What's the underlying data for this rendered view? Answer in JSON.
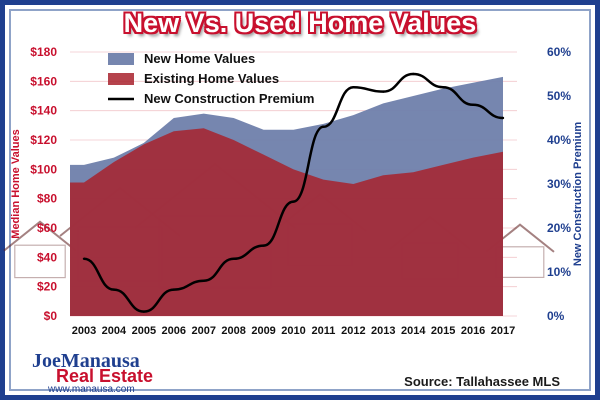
{
  "header": {
    "title": "New Vs. Used Home Values"
  },
  "footer": {
    "source": "Source: Tallahassee MLS"
  },
  "logo": {
    "line1": "JoeManausa",
    "line2": "Real Estate",
    "url": "www.manausa.com"
  },
  "colors": {
    "new_series": "#6f7fab",
    "existing_series": "#a8222d",
    "premium_line": "#000000",
    "left_axis_text": "#c8102e",
    "right_axis_text": "#1f3f8f",
    "title_outline": "#c8102e",
    "frame": "#1f3f8f"
  },
  "chart_data": {
    "type": "area",
    "title": "New Vs. Used Home Values",
    "x": [
      "2003",
      "2004",
      "2005",
      "2006",
      "2007",
      "2008",
      "2009",
      "2010",
      "2011",
      "2012",
      "2013",
      "2014",
      "2015",
      "2016",
      "2017"
    ],
    "ylabel": "Median Home Values",
    "ylabel_right": "New Construction Premium",
    "ylim": [
      0,
      180
    ],
    "ylim_right": [
      0,
      60
    ],
    "yticks": [
      "$0",
      "$20",
      "$40",
      "$60",
      "$80",
      "$100",
      "$120",
      "$140",
      "$160",
      "$180"
    ],
    "yticks_right": [
      "0%",
      "10%",
      "20%",
      "30%",
      "40%",
      "50%",
      "60%"
    ],
    "legend": "top-left",
    "grid": true,
    "series": [
      {
        "name": "New Home Values",
        "type": "area",
        "axis": "left",
        "values": [
          103,
          108,
          118,
          135,
          138,
          135,
          127,
          127,
          131,
          137,
          145,
          150,
          155,
          159,
          163
        ]
      },
      {
        "name": "Existing Home Values",
        "type": "area",
        "axis": "left",
        "values": [
          91,
          105,
          117,
          126,
          128,
          120,
          110,
          100,
          93,
          90,
          96,
          98,
          103,
          108,
          112
        ]
      },
      {
        "name": "New Construction Premium",
        "type": "line",
        "axis": "right",
        "values": [
          13,
          6,
          1,
          6,
          8,
          13,
          16,
          26,
          43,
          52,
          51,
          55,
          52,
          48,
          45
        ]
      }
    ]
  }
}
